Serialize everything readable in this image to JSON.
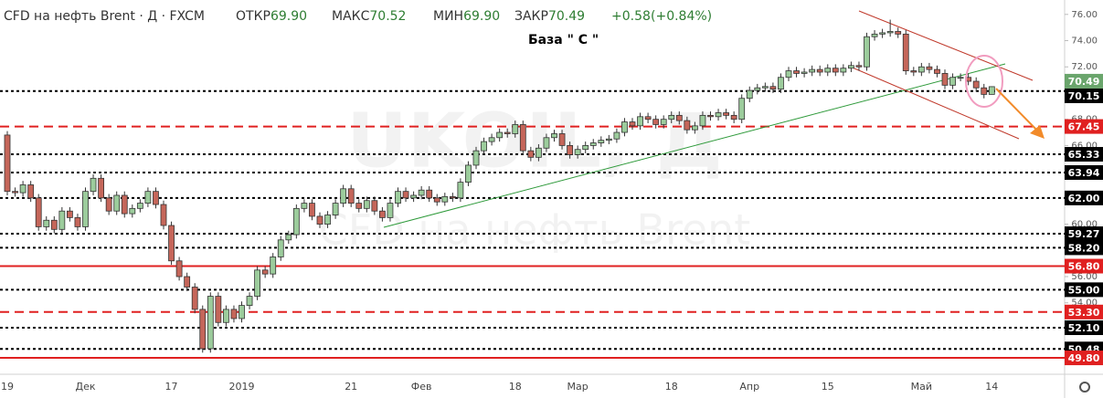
{
  "chart_data": {
    "type": "candlestick",
    "header": {
      "title": "CFD на нефть Brent · Д · FXCM",
      "open_label": "ОТКР",
      "open": {
        "value": 69.9,
        "label": "69.90"
      },
      "high_label": "МАКС",
      "high": {
        "value": 70.52,
        "label": "70.52"
      },
      "low_label": "МИН",
      "low": {
        "value": 69.9,
        "label": "69.90"
      },
      "close_label": "ЗАКР",
      "close": {
        "value": 70.49,
        "label": "70.49"
      },
      "change": {
        "value": 0.58,
        "label": "+0.58"
      },
      "change_pct": {
        "value": 0.84,
        "label": "(+0.84%)"
      }
    },
    "annotation": "База \" С \"",
    "watermark": [
      "UKOIL, Д",
      "CFD на нефть Brent"
    ],
    "up_color": "#9ccc9c",
    "down_color": "#c5665a",
    "last_price_color": "#6aa56c",
    "ylim": [
      48.55,
      77.1
    ],
    "yticks": [
      {
        "value": 50,
        "label": "50.00"
      },
      {
        "value": 52,
        "label": "52.00"
      },
      {
        "value": 54,
        "label": "54.00"
      },
      {
        "value": 56,
        "label": "56.00"
      },
      {
        "value": 58,
        "label": "58.00"
      },
      {
        "value": 60,
        "label": "60.00"
      },
      {
        "value": 62,
        "label": "62.00"
      },
      {
        "value": 64,
        "label": "64.00"
      },
      {
        "value": 66,
        "label": "66.00"
      },
      {
        "value": 68,
        "label": "68.00"
      },
      {
        "value": 70,
        "label": "70.00"
      },
      {
        "value": 72,
        "label": "72.00"
      },
      {
        "value": 74,
        "label": "74.00"
      },
      {
        "value": 76,
        "label": "76.00"
      }
    ],
    "levels": [
      {
        "value": 70.15,
        "color": "#000000",
        "style": "dotted"
      },
      {
        "value": 67.45,
        "color": "#e02020",
        "style": "dashed"
      },
      {
        "value": 65.33,
        "color": "#000000",
        "style": "dotted"
      },
      {
        "value": 63.94,
        "color": "#000000",
        "style": "dotted"
      },
      {
        "value": 62,
        "label": "62.00",
        "color": "#000000",
        "style": "dotted"
      },
      {
        "value": 59.27,
        "color": "#000000",
        "style": "dotted"
      },
      {
        "value": 58.2,
        "label": "58.20",
        "color": "#000000",
        "style": "dotted"
      },
      {
        "value": 56.8,
        "label": "56.80",
        "color": "#e02020",
        "style": "solid"
      },
      {
        "value": 55,
        "label": "55.00",
        "color": "#000000",
        "style": "dotted"
      },
      {
        "value": 53.3,
        "label": "53.30",
        "color": "#e02020",
        "style": "dashed"
      },
      {
        "value": 52.1,
        "label": "52.10",
        "color": "#000000",
        "style": "dotted"
      },
      {
        "value": 50.48,
        "color": "#000000",
        "style": "dotted"
      },
      {
        "value": 49.8,
        "label": "49.80",
        "color": "#e02020",
        "style": "solid"
      }
    ],
    "categories": [
      "19",
      null,
      null,
      null,
      null,
      null,
      null,
      null,
      null,
      null,
      "Дек",
      null,
      null,
      null,
      null,
      null,
      null,
      null,
      null,
      null,
      null,
      "17",
      null,
      null,
      null,
      null,
      null,
      null,
      null,
      null,
      "2019",
      null,
      null,
      null,
      null,
      null,
      null,
      null,
      null,
      null,
      null,
      null,
      null,
      null,
      "21",
      null,
      null,
      null,
      null,
      null,
      null,
      null,
      null,
      "Фев",
      null,
      null,
      null,
      null,
      null,
      null,
      null,
      null,
      null,
      null,
      null,
      "18",
      null,
      null,
      null,
      null,
      null,
      null,
      null,
      "Мар",
      null,
      null,
      null,
      null,
      null,
      null,
      null,
      null,
      null,
      null,
      null,
      "18",
      null,
      null,
      null,
      null,
      null,
      null,
      null,
      null,
      null,
      "Апр",
      null,
      null,
      null,
      null,
      null,
      null,
      null,
      null,
      null,
      "15",
      null,
      null,
      null,
      null,
      null,
      null,
      null,
      null,
      null,
      null,
      null,
      "Май",
      null,
      null,
      null,
      null,
      null,
      null,
      null,
      null,
      "14"
    ],
    "ohlc": [
      [
        66.8,
        67.1,
        62.2,
        62.5
      ],
      [
        62.5,
        62.8,
        62.1,
        62.4
      ],
      [
        62.4,
        63.3,
        62.1,
        63.0
      ],
      [
        63.0,
        63.3,
        61.7,
        62.0
      ],
      [
        62.0,
        62.3,
        59.5,
        59.8
      ],
      [
        59.8,
        60.6,
        59.5,
        60.3
      ],
      [
        60.3,
        60.6,
        59.3,
        59.6
      ],
      [
        59.6,
        61.3,
        59.3,
        61.0
      ],
      [
        61.0,
        61.3,
        60.2,
        60.5
      ],
      [
        60.5,
        60.8,
        59.5,
        59.8
      ],
      [
        59.8,
        62.8,
        59.5,
        62.5
      ],
      [
        62.5,
        63.8,
        62.2,
        63.5
      ],
      [
        63.5,
        63.8,
        61.7,
        62.0
      ],
      [
        62.0,
        62.3,
        60.7,
        61.0
      ],
      [
        61.0,
        62.5,
        60.7,
        62.2
      ],
      [
        62.2,
        62.5,
        60.5,
        60.8
      ],
      [
        60.8,
        61.5,
        60.5,
        61.2
      ],
      [
        61.2,
        61.9,
        60.9,
        61.6
      ],
      [
        61.6,
        62.8,
        61.3,
        62.5
      ],
      [
        62.5,
        62.8,
        61.2,
        61.5
      ],
      [
        61.5,
        61.8,
        59.6,
        59.9
      ],
      [
        59.9,
        60.2,
        56.9,
        57.2
      ],
      [
        57.2,
        57.5,
        55.7,
        56.0
      ],
      [
        56.0,
        56.3,
        54.9,
        55.2
      ],
      [
        55.2,
        55.5,
        53.2,
        53.5
      ],
      [
        53.5,
        53.8,
        50.2,
        50.5
      ],
      [
        50.5,
        54.8,
        50.2,
        54.5
      ],
      [
        54.5,
        54.8,
        52.2,
        52.5
      ],
      [
        52.5,
        53.8,
        52.2,
        53.5
      ],
      [
        53.5,
        53.8,
        52.5,
        52.8
      ],
      [
        52.8,
        54.1,
        52.5,
        53.8
      ],
      [
        53.8,
        54.8,
        53.5,
        54.5
      ],
      [
        54.5,
        56.8,
        54.2,
        56.5
      ],
      [
        56.5,
        56.8,
        55.9,
        56.2
      ],
      [
        56.2,
        57.8,
        55.9,
        57.5
      ],
      [
        57.5,
        59.1,
        57.2,
        58.8
      ],
      [
        58.8,
        59.5,
        58.5,
        59.2
      ],
      [
        59.2,
        61.5,
        58.9,
        61.2
      ],
      [
        61.2,
        61.9,
        60.9,
        61.6
      ],
      [
        61.6,
        61.9,
        60.3,
        60.6
      ],
      [
        60.6,
        60.9,
        59.7,
        60.0
      ],
      [
        60.0,
        61.0,
        59.7,
        60.7
      ],
      [
        60.7,
        61.9,
        60.4,
        61.6
      ],
      [
        61.6,
        63.0,
        61.3,
        62.7
      ],
      [
        62.7,
        63.0,
        61.3,
        61.6
      ],
      [
        61.6,
        61.9,
        60.9,
        61.2
      ],
      [
        61.2,
        62.1,
        60.9,
        61.8
      ],
      [
        61.8,
        62.1,
        60.7,
        61.0
      ],
      [
        61.0,
        61.3,
        60.2,
        60.5
      ],
      [
        60.5,
        61.9,
        60.2,
        61.6
      ],
      [
        61.6,
        62.8,
        61.3,
        62.5
      ],
      [
        62.5,
        62.8,
        61.7,
        62.0
      ],
      [
        62.0,
        62.5,
        61.7,
        62.2
      ],
      [
        62.2,
        62.9,
        61.9,
        62.6
      ],
      [
        62.6,
        62.9,
        61.7,
        62.0
      ],
      [
        62.0,
        62.3,
        61.4,
        61.7
      ],
      [
        61.7,
        62.4,
        61.4,
        62.1
      ],
      [
        62.1,
        62.4,
        61.7,
        62.0
      ],
      [
        62.0,
        63.5,
        61.7,
        63.2
      ],
      [
        63.2,
        64.8,
        62.9,
        64.5
      ],
      [
        64.5,
        65.9,
        64.2,
        65.6
      ],
      [
        65.6,
        66.6,
        65.3,
        66.3
      ],
      [
        66.3,
        66.9,
        66.0,
        66.6
      ],
      [
        66.6,
        67.3,
        66.3,
        67.0
      ],
      [
        67.0,
        67.3,
        66.6,
        66.9
      ],
      [
        66.9,
        67.9,
        66.6,
        67.6
      ],
      [
        67.6,
        67.9,
        65.3,
        65.6
      ],
      [
        65.6,
        65.9,
        64.8,
        65.1
      ],
      [
        65.1,
        66.1,
        64.8,
        65.8
      ],
      [
        65.8,
        66.9,
        65.5,
        66.6
      ],
      [
        66.6,
        67.2,
        66.3,
        66.9
      ],
      [
        66.9,
        67.2,
        65.7,
        66.0
      ],
      [
        66.0,
        66.3,
        65.0,
        65.3
      ],
      [
        65.3,
        66.0,
        65.0,
        65.7
      ],
      [
        65.7,
        66.3,
        65.4,
        66.0
      ],
      [
        66.0,
        66.5,
        65.7,
        66.2
      ],
      [
        66.2,
        66.7,
        65.9,
        66.4
      ],
      [
        66.4,
        66.8,
        66.1,
        66.5
      ],
      [
        66.5,
        67.3,
        66.2,
        67.0
      ],
      [
        67.0,
        68.1,
        66.7,
        67.8
      ],
      [
        67.8,
        68.1,
        67.2,
        67.5
      ],
      [
        67.5,
        68.5,
        67.2,
        68.2
      ],
      [
        68.2,
        68.5,
        67.7,
        68.0
      ],
      [
        68.0,
        68.3,
        67.3,
        67.6
      ],
      [
        67.6,
        68.3,
        67.3,
        68.0
      ],
      [
        68.0,
        68.6,
        67.7,
        68.3
      ],
      [
        68.3,
        68.6,
        67.6,
        67.9
      ],
      [
        67.9,
        68.2,
        66.9,
        67.2
      ],
      [
        67.2,
        67.8,
        66.9,
        67.5
      ],
      [
        67.5,
        68.6,
        67.2,
        68.3
      ],
      [
        68.3,
        68.6,
        67.9,
        68.2
      ],
      [
        68.2,
        68.8,
        67.9,
        68.5
      ],
      [
        68.5,
        68.8,
        68.0,
        68.3
      ],
      [
        68.3,
        68.6,
        67.7,
        68.0
      ],
      [
        68.0,
        69.9,
        67.7,
        69.6
      ],
      [
        69.6,
        70.5,
        69.3,
        70.2
      ],
      [
        70.2,
        70.7,
        69.9,
        70.4
      ],
      [
        70.4,
        70.8,
        70.1,
        70.5
      ],
      [
        70.5,
        70.8,
        70.0,
        70.3
      ],
      [
        70.3,
        71.5,
        70.0,
        71.2
      ],
      [
        71.2,
        72.0,
        70.9,
        71.7
      ],
      [
        71.7,
        72.0,
        71.2,
        71.5
      ],
      [
        71.5,
        71.9,
        71.2,
        71.6
      ],
      [
        71.6,
        72.1,
        71.3,
        71.8
      ],
      [
        71.8,
        72.1,
        71.3,
        71.6
      ],
      [
        71.6,
        72.2,
        71.3,
        71.9
      ],
      [
        71.9,
        72.2,
        71.3,
        71.6
      ],
      [
        71.6,
        72.2,
        71.3,
        71.9
      ],
      [
        71.9,
        72.4,
        71.6,
        72.1
      ],
      [
        72.1,
        72.4,
        71.7,
        72.0
      ],
      [
        72.0,
        74.6,
        71.7,
        74.3
      ],
      [
        74.3,
        74.8,
        74.0,
        74.5
      ],
      [
        74.5,
        74.9,
        74.2,
        74.6
      ],
      [
        74.6,
        75.6,
        74.3,
        74.7
      ],
      [
        74.7,
        75.0,
        74.2,
        74.5
      ],
      [
        74.5,
        74.8,
        71.4,
        71.7
      ],
      [
        71.7,
        72.0,
        71.3,
        71.6
      ],
      [
        71.6,
        72.3,
        71.3,
        72.0
      ],
      [
        72.0,
        72.3,
        71.5,
        71.8
      ],
      [
        71.8,
        72.1,
        71.2,
        71.5
      ],
      [
        71.5,
        71.8,
        70.3,
        70.6
      ],
      [
        70.6,
        71.5,
        70.3,
        71.2
      ],
      [
        71.2,
        71.5,
        70.9,
        71.2
      ],
      [
        71.2,
        71.5,
        70.6,
        70.9
      ],
      [
        70.9,
        71.2,
        70.1,
        70.4
      ],
      [
        70.4,
        70.7,
        69.6,
        69.9
      ],
      [
        69.9,
        70.52,
        69.9,
        70.49
      ]
    ]
  }
}
